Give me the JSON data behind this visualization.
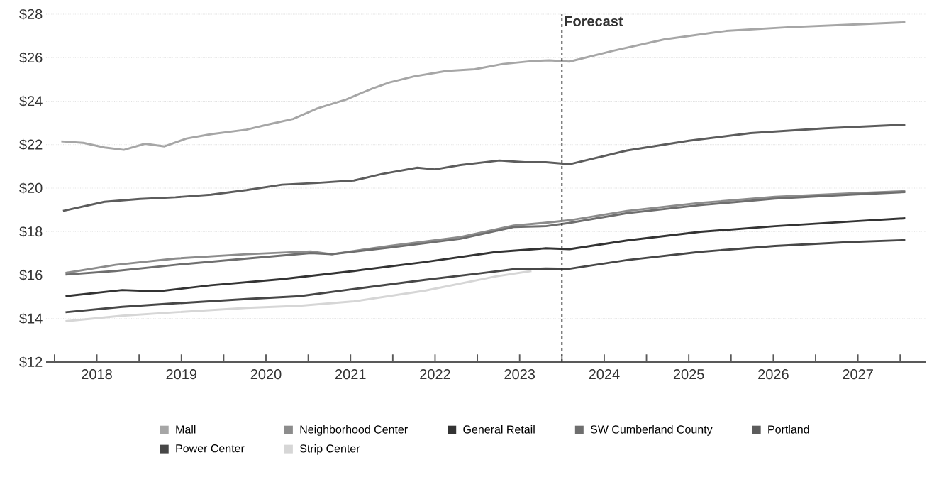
{
  "chart_data": {
    "type": "line",
    "xlim": [
      2017.9,
      2028.3
    ],
    "xticks": [
      {
        "value": 2018,
        "label": null
      },
      {
        "value": 2018.5,
        "label": "2018"
      },
      {
        "value": 2019,
        "label": null
      },
      {
        "value": 2019.5,
        "label": "2019"
      },
      {
        "value": 2020,
        "label": null
      },
      {
        "value": 2020.5,
        "label": "2020"
      },
      {
        "value": 2021,
        "label": null
      },
      {
        "value": 2021.5,
        "label": "2021"
      },
      {
        "value": 2022,
        "label": null
      },
      {
        "value": 2022.5,
        "label": "2022"
      },
      {
        "value": 2023,
        "label": null
      },
      {
        "value": 2023.5,
        "label": "2023"
      },
      {
        "value": 2024,
        "label": null
      },
      {
        "value": 2024.5,
        "label": "2024"
      },
      {
        "value": 2025,
        "label": null
      },
      {
        "value": 2025.5,
        "label": "2025"
      },
      {
        "value": 2026,
        "label": null
      },
      {
        "value": 2026.5,
        "label": "2026"
      },
      {
        "value": 2027,
        "label": null
      },
      {
        "value": 2027.5,
        "label": "2027"
      },
      {
        "value": 2028,
        "label": null
      }
    ],
    "ylim": [
      12,
      28
    ],
    "yticks": [
      {
        "value": 12,
        "label": "$12"
      },
      {
        "value": 14,
        "label": "$14"
      },
      {
        "value": 16,
        "label": "$16"
      },
      {
        "value": 18,
        "label": "$18"
      },
      {
        "value": 20,
        "label": "$20"
      },
      {
        "value": 22,
        "label": "$22"
      },
      {
        "value": 24,
        "label": "$24"
      },
      {
        "value": 26,
        "label": "$26"
      },
      {
        "value": 28,
        "label": "$28"
      }
    ],
    "grid": "y",
    "legend": "bottom",
    "marker": "none",
    "line_style": "solid",
    "ref_lines": [
      {
        "axis": "x",
        "value": 2024,
        "label": "Forecast",
        "color": "#333333",
        "line_style": "dashed"
      }
    ],
    "series": [
      {
        "name": "Mall",
        "color": "#a6a6a6",
        "x": [
          2018.08,
          2018.34,
          2018.59,
          2018.82,
          2019.07,
          2019.3,
          2019.56,
          2019.85,
          2020.27,
          2020.53,
          2020.82,
          2021.11,
          2021.45,
          2021.75,
          2021.96,
          2022.25,
          2022.63,
          2022.97,
          2023.3,
          2023.64,
          2023.85,
          2024.09,
          2024.62,
          2025.21,
          2025.94,
          2026.67,
          2027.4,
          2028.06
        ],
        "values": [
          22.15,
          22.08,
          21.87,
          21.76,
          22.04,
          21.92,
          22.28,
          22.48,
          22.69,
          22.93,
          23.18,
          23.67,
          24.08,
          24.57,
          24.86,
          25.14,
          25.39,
          25.47,
          25.71,
          25.84,
          25.88,
          25.82,
          26.33,
          26.84,
          27.23,
          27.4,
          27.52,
          27.63
        ]
      },
      {
        "name": "Neighborhood Center",
        "color": "#8c8c8c",
        "x": [
          2018.13,
          2018.72,
          2019.43,
          2020.27,
          2021.03,
          2021.28,
          2021.96,
          2022.8,
          2023.43,
          2023.81,
          2024.09,
          2024.77,
          2025.64,
          2026.52,
          2027.4,
          2028.06
        ],
        "values": [
          16.1,
          16.47,
          16.76,
          16.96,
          17.09,
          16.96,
          17.34,
          17.75,
          18.28,
          18.41,
          18.52,
          18.95,
          19.32,
          19.6,
          19.76,
          19.86
        ]
      },
      {
        "name": "General Retail",
        "color": "#333333",
        "x": [
          2018.13,
          2018.8,
          2019.22,
          2019.85,
          2020.69,
          2021.54,
          2022.38,
          2023.22,
          2023.81,
          2024.09,
          2024.77,
          2025.64,
          2026.52,
          2027.4,
          2028.06
        ],
        "values": [
          15.03,
          15.31,
          15.25,
          15.53,
          15.81,
          16.19,
          16.6,
          17.06,
          17.23,
          17.19,
          17.59,
          17.99,
          18.25,
          18.46,
          18.61
        ]
      },
      {
        "name": "SW Cumberland County",
        "color": "#6e6e6e",
        "x": [
          2018.13,
          2018.72,
          2019.43,
          2020.27,
          2021.03,
          2021.28,
          2021.96,
          2022.8,
          2023.43,
          2023.81,
          2024.09,
          2024.77,
          2025.64,
          2026.52,
          2027.4,
          2028.06
        ],
        "values": [
          16.02,
          16.19,
          16.47,
          16.76,
          17.01,
          16.96,
          17.26,
          17.67,
          18.21,
          18.25,
          18.4,
          18.85,
          19.22,
          19.52,
          19.7,
          19.82
        ]
      },
      {
        "name": "Portland",
        "color": "#5c5c5c",
        "x": [
          2018.1,
          2018.59,
          2019.01,
          2019.43,
          2019.85,
          2020.27,
          2020.69,
          2021.11,
          2021.54,
          2021.87,
          2022.29,
          2022.5,
          2022.8,
          2023.26,
          2023.56,
          2023.81,
          2024.09,
          2024.77,
          2025.5,
          2026.23,
          2027.11,
          2028.06
        ],
        "values": [
          18.95,
          19.37,
          19.5,
          19.58,
          19.7,
          19.91,
          20.16,
          20.24,
          20.35,
          20.65,
          20.94,
          20.86,
          21.06,
          21.27,
          21.19,
          21.19,
          21.1,
          21.73,
          22.18,
          22.53,
          22.75,
          22.92
        ]
      },
      {
        "name": "Power Center",
        "color": "#474747",
        "x": [
          2018.13,
          2018.8,
          2019.43,
          2020.27,
          2020.9,
          2021.54,
          2022.38,
          2023.01,
          2023.43,
          2023.81,
          2024.09,
          2024.77,
          2025.64,
          2026.52,
          2027.4,
          2028.06
        ],
        "values": [
          14.29,
          14.54,
          14.7,
          14.9,
          15.03,
          15.36,
          15.78,
          16.07,
          16.27,
          16.3,
          16.29,
          16.69,
          17.07,
          17.34,
          17.52,
          17.61
        ]
      },
      {
        "name": "Strip Center",
        "color": "#d6d6d6",
        "x": [
          2018.13,
          2018.8,
          2019.43,
          2020.27,
          2020.9,
          2021.54,
          2022.38,
          2023.22,
          2023.64
        ],
        "values": [
          13.88,
          14.13,
          14.29,
          14.49,
          14.59,
          14.79,
          15.28,
          15.94,
          16.19
        ]
      }
    ]
  }
}
